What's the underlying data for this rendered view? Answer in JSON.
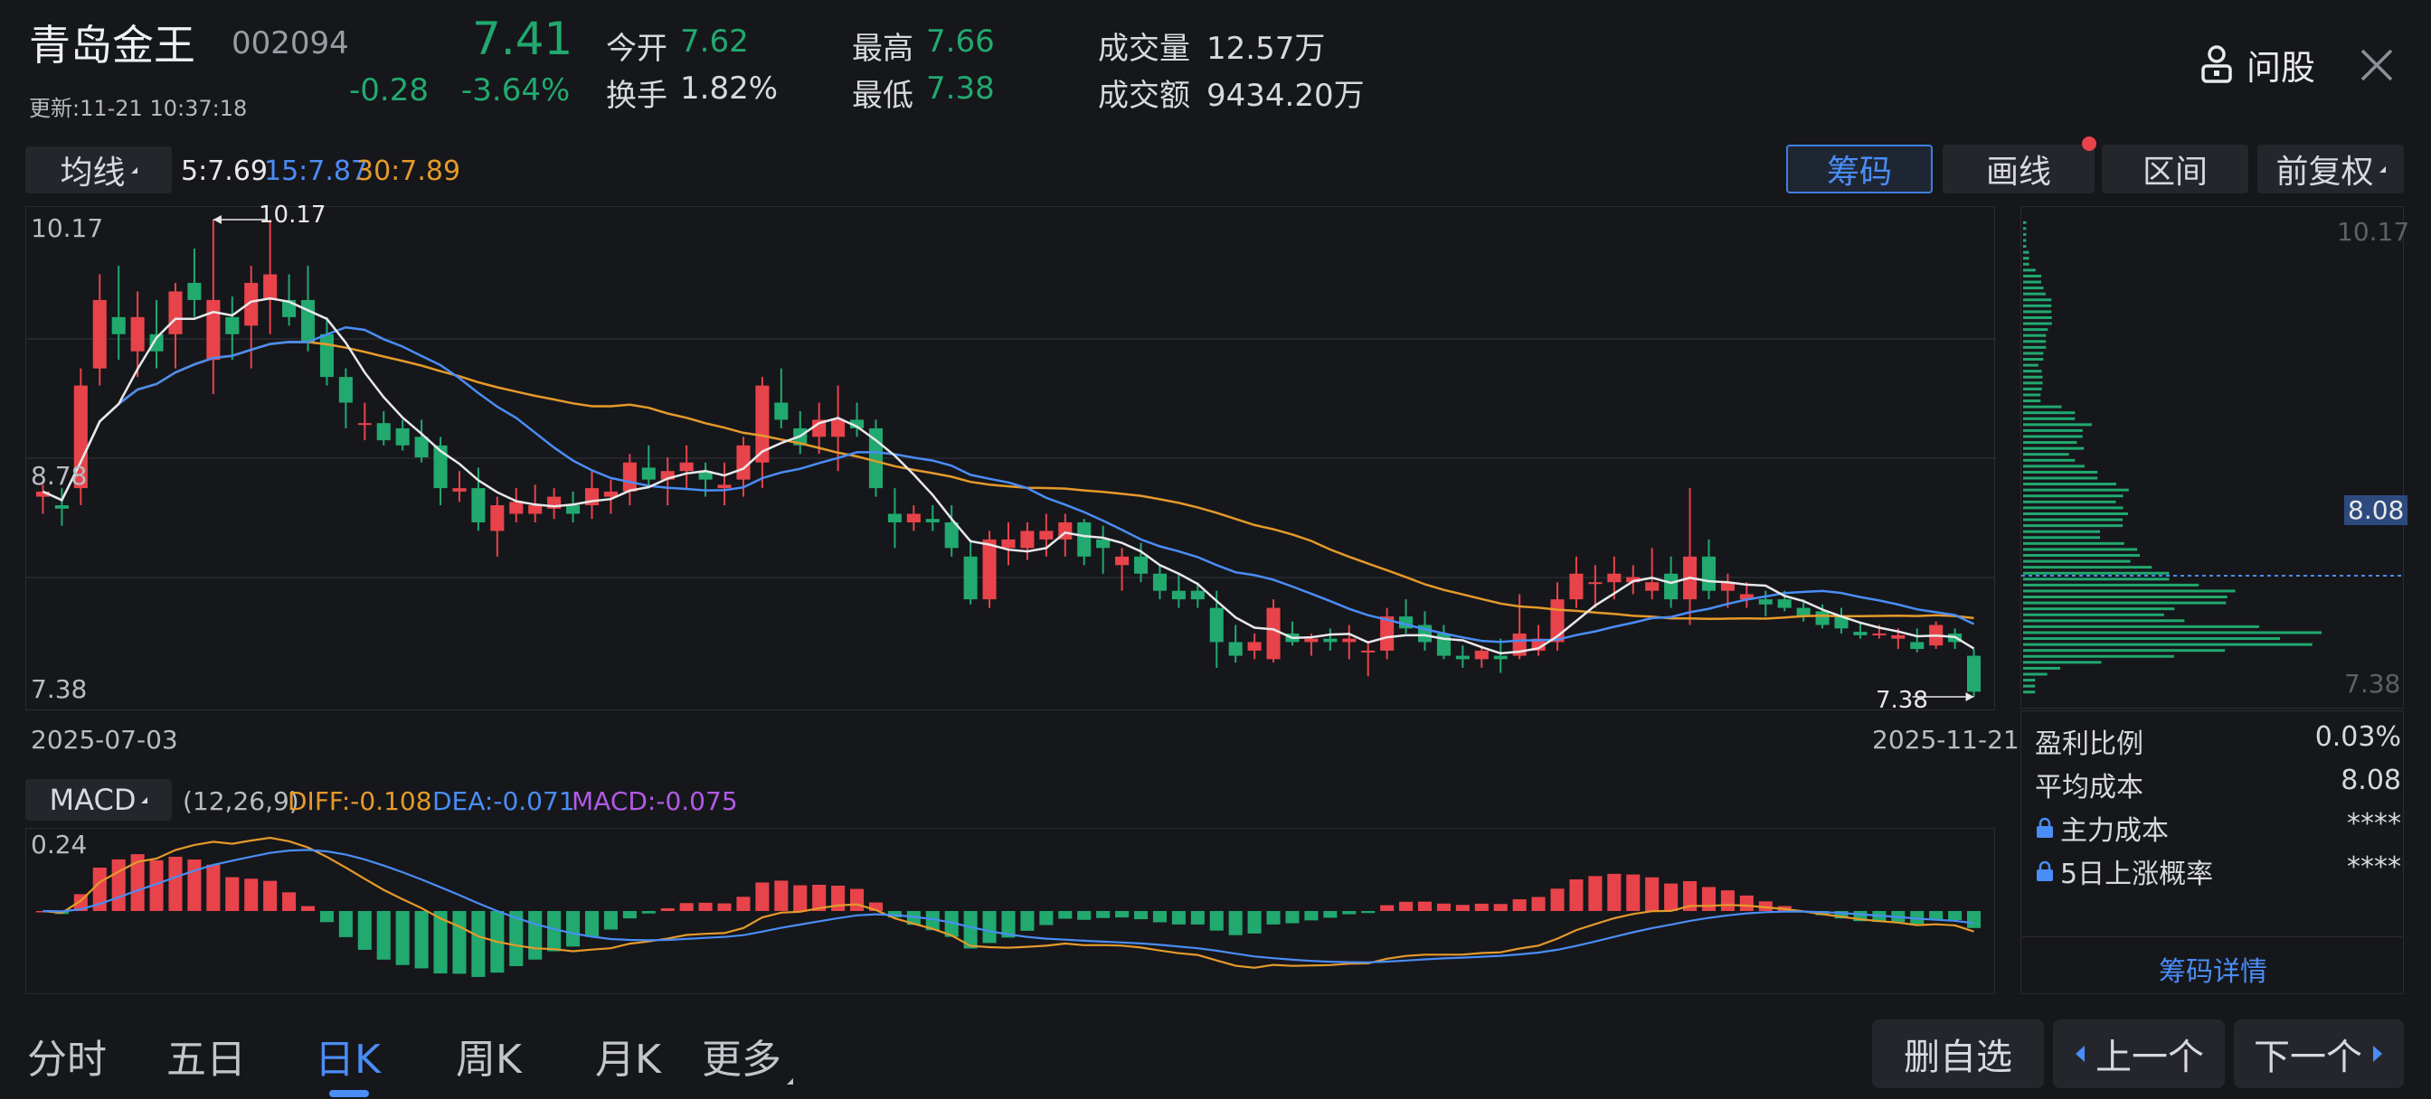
{
  "header": {
    "stock_name": "青岛金王",
    "stock_code": "002094",
    "price": "7.41",
    "change": "-0.28",
    "change_pct": "-3.64%",
    "updated": "更新:11-21 10:37:18",
    "open_label": "今开",
    "open_value": "7.62",
    "turnover_label": "换手",
    "turnover_value": "1.82%",
    "high_label": "最高",
    "high_value": "7.66",
    "low_label": "最低",
    "low_value": "7.38",
    "volume_label": "成交量",
    "volume_value": "12.57万",
    "amount_label": "成交额",
    "amount_value": "9434.20万",
    "ask_label": "问股",
    "close_icon": "close-icon",
    "ask_icon": "person-lock-icon"
  },
  "ma_bar": {
    "selector_label": "均线",
    "ma5": "5:7.69",
    "ma15": "15:7.87",
    "ma30": "30:7.89"
  },
  "chart_tools": {
    "chips": "筹码",
    "draw": "画线",
    "range": "区间",
    "adjust": "前复权"
  },
  "price_chart": {
    "y_max_label": "10.17",
    "y_mid_label": "8.78",
    "y_min_label": "7.38",
    "high_marker": "10.17",
    "low_marker": "7.38",
    "start_date": "2025-07-03",
    "end_date": "2025-11-21"
  },
  "chip_panel": {
    "top_label": "10.17",
    "avg_label": "8.08",
    "bottom_label": "7.38",
    "profit_ratio_label": "盈利比例",
    "profit_ratio_value": "0.03%",
    "avg_cost_label": "平均成本",
    "avg_cost_value": "8.08",
    "main_cost_label": "主力成本",
    "main_cost_value": "****",
    "rise_prob_label": "5日上涨概率",
    "rise_prob_value": "****",
    "detail_link": "筹码详情"
  },
  "macd_bar": {
    "selector_label": "MACD",
    "params": "(12,26,9)",
    "diff": "DIFF:-0.108",
    "dea": "DEA:-0.071",
    "macd": "MACD:-0.075",
    "top_label": "0.24"
  },
  "bottom_tabs": {
    "items": [
      "分时",
      "五日",
      "日K",
      "周K",
      "月K",
      "更多"
    ],
    "active_index": 2
  },
  "bottom_actions": {
    "remove": "删自选",
    "prev": "上一个",
    "next": "下一个"
  },
  "colors": {
    "up": "#e8434a",
    "down": "#21a96f",
    "ma5": "#e8e8ea",
    "ma15": "#4a8df6",
    "ma30": "#e59a2b",
    "accent": "#4a8df6"
  },
  "chart_data": {
    "type": "candlestick",
    "x_range": [
      "2025-07-03",
      "2025-11-21"
    ],
    "ylim": [
      7.38,
      10.17
    ],
    "candles": [
      [
        8.55,
        8.62,
        8.45,
        8.58
      ],
      [
        8.5,
        8.6,
        8.38,
        8.48
      ],
      [
        8.6,
        9.3,
        8.5,
        9.2
      ],
      [
        9.3,
        9.85,
        9.2,
        9.7
      ],
      [
        9.6,
        9.9,
        9.35,
        9.5
      ],
      [
        9.4,
        9.75,
        9.25,
        9.6
      ],
      [
        9.5,
        9.7,
        9.3,
        9.4
      ],
      [
        9.5,
        9.8,
        9.3,
        9.75
      ],
      [
        9.8,
        10.0,
        9.6,
        9.7
      ],
      [
        9.35,
        10.17,
        9.15,
        9.7
      ],
      [
        9.6,
        9.72,
        9.35,
        9.5
      ],
      [
        9.55,
        9.9,
        9.3,
        9.8
      ],
      [
        9.7,
        10.17,
        9.5,
        9.85
      ],
      [
        9.7,
        9.85,
        9.55,
        9.6
      ],
      [
        9.7,
        9.9,
        9.4,
        9.45
      ],
      [
        9.5,
        9.6,
        9.2,
        9.25
      ],
      [
        9.25,
        9.3,
        8.95,
        9.1
      ],
      [
        8.98,
        9.1,
        8.88,
        8.98
      ],
      [
        8.98,
        9.05,
        8.85,
        8.88
      ],
      [
        8.95,
        9.0,
        8.82,
        8.85
      ],
      [
        8.9,
        9.0,
        8.75,
        8.78
      ],
      [
        8.85,
        8.9,
        8.5,
        8.6
      ],
      [
        8.58,
        8.7,
        8.52,
        8.6
      ],
      [
        8.6,
        8.72,
        8.35,
        8.4
      ],
      [
        8.35,
        8.55,
        8.2,
        8.5
      ],
      [
        8.45,
        8.6,
        8.4,
        8.52
      ],
      [
        8.45,
        8.62,
        8.4,
        8.5
      ],
      [
        8.48,
        8.6,
        8.42,
        8.55
      ],
      [
        8.5,
        8.58,
        8.4,
        8.45
      ],
      [
        8.5,
        8.7,
        8.42,
        8.6
      ],
      [
        8.55,
        8.65,
        8.45,
        8.58
      ],
      [
        8.58,
        8.8,
        8.5,
        8.75
      ],
      [
        8.72,
        8.85,
        8.6,
        8.65
      ],
      [
        8.65,
        8.78,
        8.5,
        8.7
      ],
      [
        8.7,
        8.85,
        8.6,
        8.75
      ],
      [
        8.7,
        8.75,
        8.55,
        8.65
      ],
      [
        8.6,
        8.75,
        8.5,
        8.62
      ],
      [
        8.65,
        8.9,
        8.55,
        8.85
      ],
      [
        8.75,
        9.25,
        8.6,
        9.2
      ],
      [
        9.1,
        9.3,
        8.95,
        9.0
      ],
      [
        8.95,
        9.05,
        8.8,
        8.85
      ],
      [
        8.9,
        9.1,
        8.8,
        9.0
      ],
      [
        8.9,
        9.2,
        8.7,
        9.0
      ],
      [
        9.0,
        9.1,
        8.9,
        8.95
      ],
      [
        8.95,
        9.0,
        8.55,
        8.6
      ],
      [
        8.45,
        8.6,
        8.25,
        8.4
      ],
      [
        8.4,
        8.5,
        8.35,
        8.45
      ],
      [
        8.42,
        8.5,
        8.35,
        8.4
      ],
      [
        8.4,
        8.5,
        8.2,
        8.25
      ],
      [
        8.2,
        8.3,
        7.92,
        7.95
      ],
      [
        7.95,
        8.35,
        7.9,
        8.3
      ],
      [
        8.25,
        8.4,
        8.15,
        8.3
      ],
      [
        8.25,
        8.4,
        8.18,
        8.35
      ],
      [
        8.3,
        8.45,
        8.2,
        8.35
      ],
      [
        8.3,
        8.45,
        8.2,
        8.4
      ],
      [
        8.4,
        8.42,
        8.15,
        8.2
      ],
      [
        8.3,
        8.38,
        8.1,
        8.25
      ],
      [
        8.15,
        8.25,
        8.0,
        8.2
      ],
      [
        8.2,
        8.28,
        8.05,
        8.1
      ],
      [
        8.1,
        8.15,
        7.95,
        8.0
      ],
      [
        8.0,
        8.1,
        7.9,
        7.95
      ],
      [
        8.0,
        8.05,
        7.9,
        7.95
      ],
      [
        7.9,
        8.0,
        7.55,
        7.7
      ],
      [
        7.7,
        7.8,
        7.58,
        7.62
      ],
      [
        7.65,
        7.75,
        7.6,
        7.7
      ],
      [
        7.6,
        7.95,
        7.58,
        7.9
      ],
      [
        7.75,
        7.82,
        7.68,
        7.7
      ],
      [
        7.7,
        7.75,
        7.62,
        7.72
      ],
      [
        7.72,
        7.78,
        7.65,
        7.7
      ],
      [
        7.7,
        7.8,
        7.6,
        7.72
      ],
      [
        7.65,
        7.7,
        7.5,
        7.65
      ],
      [
        7.65,
        7.9,
        7.6,
        7.85
      ],
      [
        7.85,
        7.95,
        7.75,
        7.78
      ],
      [
        7.8,
        7.88,
        7.65,
        7.7
      ],
      [
        7.75,
        7.8,
        7.6,
        7.62
      ],
      [
        7.62,
        7.68,
        7.55,
        7.6
      ],
      [
        7.6,
        7.68,
        7.55,
        7.65
      ],
      [
        7.62,
        7.72,
        7.52,
        7.6
      ],
      [
        7.62,
        7.98,
        7.6,
        7.75
      ],
      [
        7.65,
        7.8,
        7.62,
        7.72
      ],
      [
        7.7,
        8.05,
        7.65,
        7.95
      ],
      [
        7.95,
        8.2,
        7.9,
        8.1
      ],
      [
        8.05,
        8.15,
        7.9,
        8.05
      ],
      [
        8.05,
        8.2,
        7.95,
        8.1
      ],
      [
        8.05,
        8.15,
        7.98,
        8.08
      ],
      [
        8.0,
        8.25,
        7.95,
        8.05
      ],
      [
        8.1,
        8.2,
        7.9,
        7.95
      ],
      [
        7.95,
        8.6,
        7.8,
        8.2
      ],
      [
        8.2,
        8.3,
        7.95,
        8.0
      ],
      [
        8.0,
        8.1,
        7.9,
        8.05
      ],
      [
        7.95,
        8.05,
        7.9,
        7.98
      ],
      [
        7.95,
        8.0,
        7.85,
        7.92
      ],
      [
        7.95,
        8.0,
        7.88,
        7.9
      ],
      [
        7.9,
        7.95,
        7.82,
        7.85
      ],
      [
        7.88,
        7.92,
        7.78,
        7.8
      ],
      [
        7.85,
        7.9,
        7.75,
        7.78
      ],
      [
        7.76,
        7.82,
        7.72,
        7.74
      ],
      [
        7.74,
        7.8,
        7.72,
        7.75
      ],
      [
        7.72,
        7.78,
        7.66,
        7.74
      ],
      [
        7.7,
        7.78,
        7.64,
        7.66
      ],
      [
        7.68,
        7.82,
        7.66,
        7.8
      ],
      [
        7.75,
        7.78,
        7.66,
        7.7
      ],
      [
        7.62,
        7.66,
        7.38,
        7.41
      ]
    ],
    "ma_series": [
      {
        "name": "5",
        "last": 7.69
      },
      {
        "name": "15",
        "last": 7.87
      },
      {
        "name": "30",
        "last": 7.89
      }
    ],
    "macd": {
      "diff_last": -0.108,
      "dea_last": -0.071,
      "macd_last": -0.075,
      "ylim_top": 0.24
    }
  }
}
